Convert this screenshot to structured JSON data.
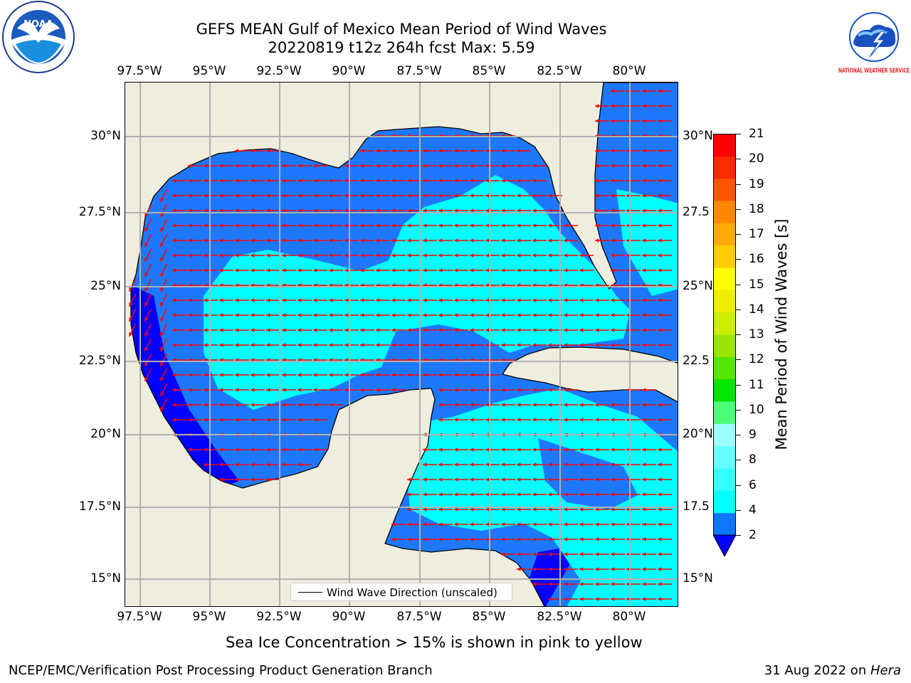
{
  "title_line1": "GEFS MEAN Gulf of Mexico Mean Period of Wind Waves",
  "title_line2": "20220819 t12z 264h fcst   Max: 5.59",
  "lon_ticks": [
    "97.5°W",
    "95°W",
    "92.5°W",
    "90°W",
    "87.5°W",
    "85°W",
    "82.5°W",
    "80°W"
  ],
  "lat_ticks_left": [
    "30°N",
    "27.5°N",
    "25°N",
    "22.5°N",
    "20°N",
    "17.5°N",
    "15°N"
  ],
  "lat_ticks_right": [
    "30°N",
    "27.5",
    "25°N",
    "22.5",
    "20°N",
    "17.5",
    "15°N"
  ],
  "legend": {
    "label": "Wind Wave Direction (unscaled)"
  },
  "colorbar": {
    "label": "Mean Period of Wind Waves [s]",
    "ticks": [
      "2",
      "4",
      "6",
      "8",
      "9",
      "10",
      "11",
      "12",
      "13",
      "14",
      "15",
      "16",
      "17",
      "18",
      "19",
      "20",
      "21"
    ],
    "colors": [
      "#0a78ff",
      "#00ffff",
      "#33ffff",
      "#66ffff",
      "#99ffff",
      "#4cff7a",
      "#00e600",
      "#55e600",
      "#99e600",
      "#ccee00",
      "#eeee00",
      "#ffff00",
      "#ffcc00",
      "#ffaa00",
      "#ff8800",
      "#ff5500",
      "#ff2a00",
      "#ff0000"
    ],
    "under_color": "#0000ff"
  },
  "note": "Sea Ice Concentration > 15% is shown in pink to yellow",
  "footer": {
    "org": "NCEP/EMC/Verification Post Processing Product Generation Branch",
    "date": "31 Aug 2022 on ",
    "host": "Hera"
  },
  "colors": {
    "land": "#efedde",
    "sea_low": "#0000ff",
    "sea_mid": "#1e78ff",
    "sea_high": "#00ffff",
    "arrow": "#ff0000",
    "grid": "#b0b0b0"
  },
  "logos": {
    "noaa": "NOAA",
    "nws": "NATIONAL WEATHER SERVICE"
  }
}
